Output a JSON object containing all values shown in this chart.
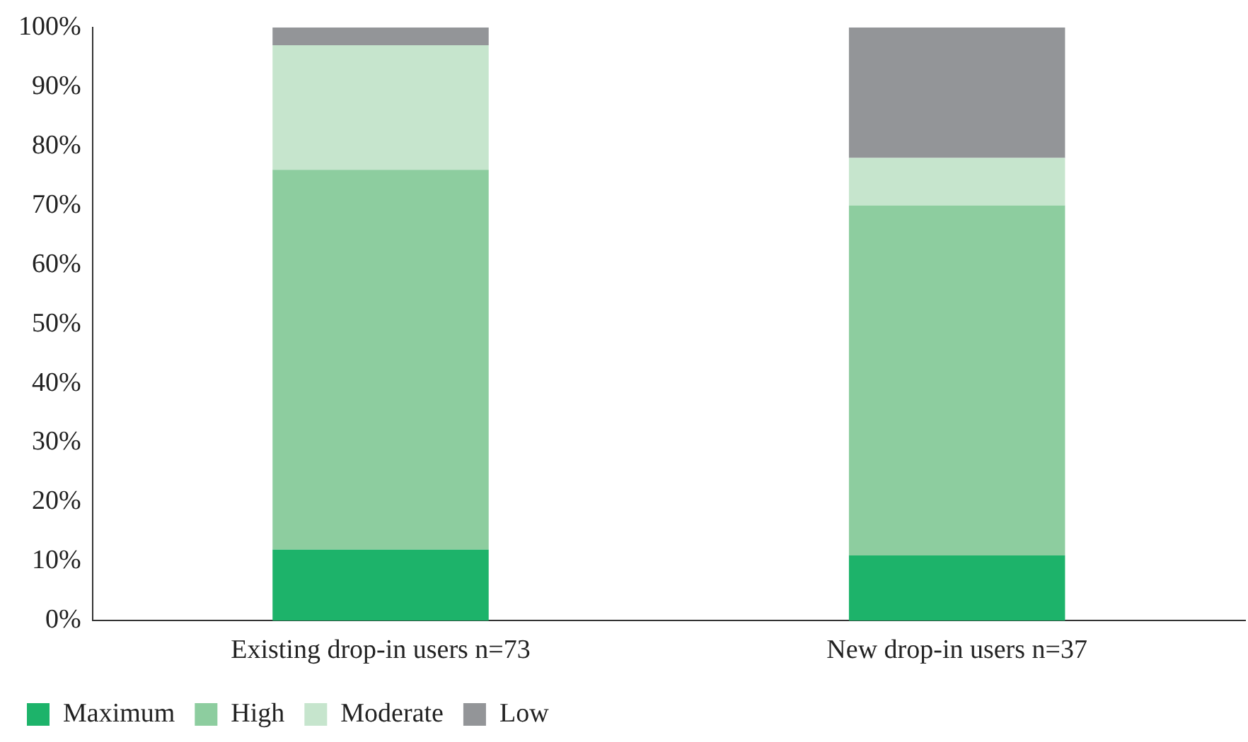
{
  "chart_data": {
    "type": "bar",
    "stacked": true,
    "categories": [
      "Existing drop-in users n=73",
      "New drop-in users n=37"
    ],
    "series": [
      {
        "name": "Maximum",
        "color": "#1db36a",
        "values": [
          12,
          11
        ]
      },
      {
        "name": "High",
        "color": "#8dcd9f",
        "values": [
          64,
          59
        ]
      },
      {
        "name": "Moderate",
        "color": "#c6e5cd",
        "values": [
          21,
          8
        ]
      },
      {
        "name": "Low",
        "color": "#939598",
        "values": [
          3,
          22
        ]
      }
    ],
    "ylim": [
      0,
      100
    ],
    "yticks": [
      {
        "value": 0,
        "label": "0%"
      },
      {
        "value": 10,
        "label": "10%"
      },
      {
        "value": 20,
        "label": "20%"
      },
      {
        "value": 30,
        "label": "30%"
      },
      {
        "value": 40,
        "label": "40%"
      },
      {
        "value": 50,
        "label": "50%"
      },
      {
        "value": 60,
        "label": "60%"
      },
      {
        "value": 70,
        "label": "70%"
      },
      {
        "value": 80,
        "label": "80%"
      },
      {
        "value": 90,
        "label": "90%"
      },
      {
        "value": 100,
        "label": "100%"
      }
    ],
    "grid": false,
    "legend": "bottom left"
  }
}
